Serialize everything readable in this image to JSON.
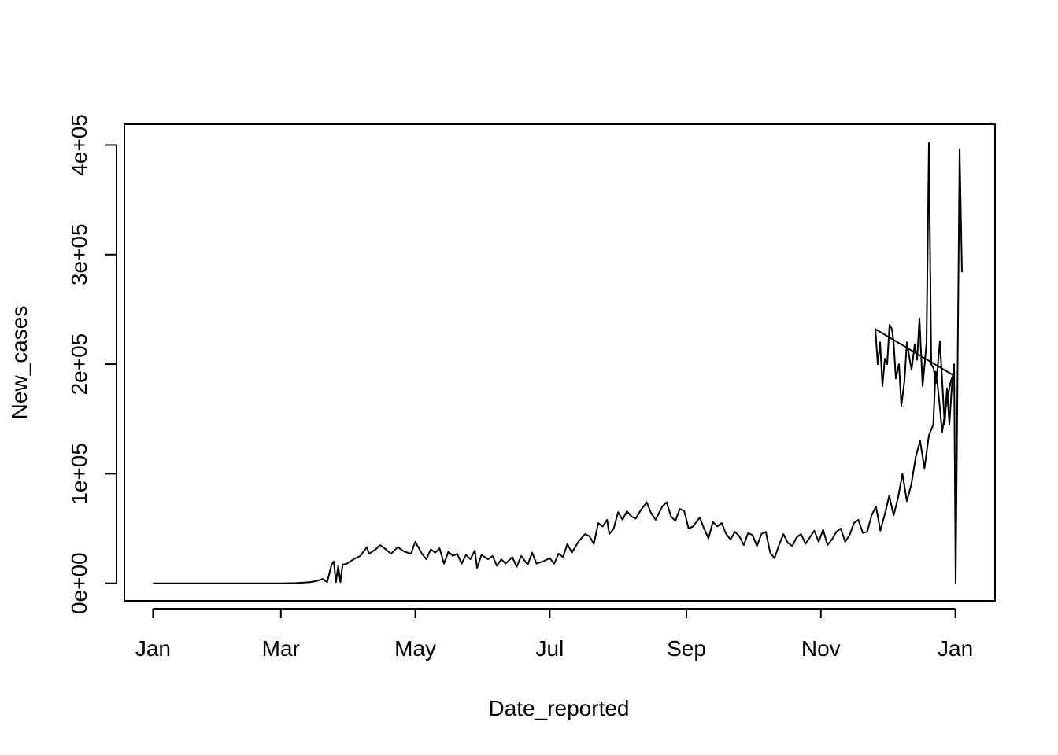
{
  "chart_data": {
    "type": "line",
    "xlabel": "Date_reported",
    "ylabel": "New_cases",
    "x_ticks": [
      {
        "date": "2020-01-03",
        "label": "Jan"
      },
      {
        "date": "2020-03-01",
        "label": "Mar"
      },
      {
        "date": "2020-05-01",
        "label": "May"
      },
      {
        "date": "2020-07-01",
        "label": "Jul"
      },
      {
        "date": "2020-09-01",
        "label": "Sep"
      },
      {
        "date": "2020-11-01",
        "label": "Nov"
      },
      {
        "date": "2021-01-01",
        "label": "Jan"
      }
    ],
    "y_ticks": [
      {
        "value": 0,
        "label": "0e+00"
      },
      {
        "value": 100000,
        "label": "1e+05"
      },
      {
        "value": 200000,
        "label": "2e+05"
      },
      {
        "value": 300000,
        "label": "3e+05"
      },
      {
        "value": 400000,
        "label": "4e+05"
      }
    ],
    "xlim": [
      "2019-12-21",
      "2021-01-19"
    ],
    "ylim": [
      -16000,
      419000
    ],
    "grid": false,
    "line_color": "#000000",
    "series": [
      {
        "points": [
          [
            "2020-01-03",
            0
          ],
          [
            "2020-02-01",
            0
          ],
          [
            "2020-03-01",
            0
          ],
          [
            "2020-03-08",
            200
          ],
          [
            "2020-03-14",
            1000
          ],
          [
            "2020-03-17",
            2000
          ],
          [
            "2020-03-20",
            4000
          ],
          [
            "2020-03-22",
            1000
          ],
          [
            "2020-03-24",
            17000
          ],
          [
            "2020-03-25",
            20000
          ],
          [
            "2020-03-26",
            1000
          ],
          [
            "2020-03-27",
            16000
          ],
          [
            "2020-03-28",
            1000
          ],
          [
            "2020-03-29",
            17000
          ],
          [
            "2020-03-31",
            18000
          ],
          [
            "2020-04-03",
            22000
          ],
          [
            "2020-04-06",
            25000
          ],
          [
            "2020-04-09",
            33000
          ],
          [
            "2020-04-10",
            27000
          ],
          [
            "2020-04-13",
            31000
          ],
          [
            "2020-04-15",
            35000
          ],
          [
            "2020-04-17",
            32000
          ],
          [
            "2020-04-20",
            27000
          ],
          [
            "2020-04-23",
            33000
          ],
          [
            "2020-04-26",
            29000
          ],
          [
            "2020-04-29",
            27000
          ],
          [
            "2020-05-01",
            38000
          ],
          [
            "2020-05-04",
            27000
          ],
          [
            "2020-05-06",
            22000
          ],
          [
            "2020-05-08",
            31000
          ],
          [
            "2020-05-10",
            28000
          ],
          [
            "2020-05-12",
            32000
          ],
          [
            "2020-05-14",
            18000
          ],
          [
            "2020-05-16",
            29000
          ],
          [
            "2020-05-18",
            25000
          ],
          [
            "2020-05-20",
            27000
          ],
          [
            "2020-05-22",
            18000
          ],
          [
            "2020-05-24",
            26000
          ],
          [
            "2020-05-26",
            22000
          ],
          [
            "2020-05-28",
            30000
          ],
          [
            "2020-05-29",
            14000
          ],
          [
            "2020-05-31",
            26000
          ],
          [
            "2020-06-03",
            22000
          ],
          [
            "2020-06-05",
            25000
          ],
          [
            "2020-06-07",
            16000
          ],
          [
            "2020-06-09",
            22000
          ],
          [
            "2020-06-11",
            18000
          ],
          [
            "2020-06-14",
            24000
          ],
          [
            "2020-06-16",
            15000
          ],
          [
            "2020-06-18",
            25000
          ],
          [
            "2020-06-21",
            17000
          ],
          [
            "2020-06-23",
            28000
          ],
          [
            "2020-06-25",
            18000
          ],
          [
            "2020-06-28",
            20000
          ],
          [
            "2020-07-01",
            23000
          ],
          [
            "2020-07-03",
            18000
          ],
          [
            "2020-07-05",
            27000
          ],
          [
            "2020-07-07",
            24000
          ],
          [
            "2020-07-09",
            36000
          ],
          [
            "2020-07-11",
            28000
          ],
          [
            "2020-07-14",
            38000
          ],
          [
            "2020-07-17",
            45000
          ],
          [
            "2020-07-19",
            43000
          ],
          [
            "2020-07-21",
            36000
          ],
          [
            "2020-07-23",
            55000
          ],
          [
            "2020-07-25",
            52000
          ],
          [
            "2020-07-27",
            58000
          ],
          [
            "2020-07-28",
            45000
          ],
          [
            "2020-07-30",
            50000
          ],
          [
            "2020-08-01",
            65000
          ],
          [
            "2020-08-03",
            58000
          ],
          [
            "2020-08-05",
            66000
          ],
          [
            "2020-08-07",
            61000
          ],
          [
            "2020-08-09",
            59000
          ],
          [
            "2020-08-11",
            66000
          ],
          [
            "2020-08-14",
            74000
          ],
          [
            "2020-08-16",
            64000
          ],
          [
            "2020-08-18",
            58000
          ],
          [
            "2020-08-21",
            70000
          ],
          [
            "2020-08-23",
            74000
          ],
          [
            "2020-08-25",
            61000
          ],
          [
            "2020-08-27",
            57000
          ],
          [
            "2020-08-29",
            68000
          ],
          [
            "2020-08-31",
            66000
          ],
          [
            "2020-09-02",
            50000
          ],
          [
            "2020-09-04",
            52000
          ],
          [
            "2020-09-07",
            60000
          ],
          [
            "2020-09-09",
            50000
          ],
          [
            "2020-09-11",
            41000
          ],
          [
            "2020-09-13",
            56000
          ],
          [
            "2020-09-15",
            52000
          ],
          [
            "2020-09-17",
            55000
          ],
          [
            "2020-09-19",
            45000
          ],
          [
            "2020-09-21",
            40000
          ],
          [
            "2020-09-23",
            47000
          ],
          [
            "2020-09-25",
            43000
          ],
          [
            "2020-09-27",
            35000
          ],
          [
            "2020-09-29",
            46000
          ],
          [
            "2020-10-01",
            44000
          ],
          [
            "2020-10-03",
            34000
          ],
          [
            "2020-10-05",
            45000
          ],
          [
            "2020-10-07",
            47000
          ],
          [
            "2020-10-09",
            28000
          ],
          [
            "2020-10-11",
            23000
          ],
          [
            "2020-10-13",
            35000
          ],
          [
            "2020-10-15",
            45000
          ],
          [
            "2020-10-17",
            37000
          ],
          [
            "2020-10-19",
            34000
          ],
          [
            "2020-10-21",
            42000
          ],
          [
            "2020-10-23",
            45000
          ],
          [
            "2020-10-25",
            36000
          ],
          [
            "2020-10-27",
            42000
          ],
          [
            "2020-10-29",
            48000
          ],
          [
            "2020-10-31",
            38000
          ],
          [
            "2020-11-02",
            49000
          ],
          [
            "2020-11-04",
            35000
          ],
          [
            "2020-11-06",
            40000
          ],
          [
            "2020-11-08",
            47000
          ],
          [
            "2020-11-10",
            50000
          ],
          [
            "2020-11-12",
            38000
          ],
          [
            "2020-11-14",
            44000
          ],
          [
            "2020-11-16",
            55000
          ],
          [
            "2020-11-18",
            58000
          ],
          [
            "2020-11-20",
            46000
          ],
          [
            "2020-11-22",
            47000
          ],
          [
            "2020-11-24",
            62000
          ],
          [
            "2020-11-26",
            70000
          ],
          [
            "2020-11-28",
            48000
          ],
          [
            "2020-11-30",
            63000
          ],
          [
            "2020-12-02",
            80000
          ],
          [
            "2020-12-04",
            62000
          ],
          [
            "2020-12-06",
            78000
          ],
          [
            "2020-12-08",
            100000
          ],
          [
            "2020-12-10",
            75000
          ],
          [
            "2020-12-12",
            90000
          ],
          [
            "2020-12-14",
            115000
          ],
          [
            "2020-12-16",
            130000
          ],
          [
            "2020-12-18",
            105000
          ],
          [
            "2020-12-20",
            135000
          ],
          [
            "2020-12-22",
            145000
          ],
          [
            "2020-12-23",
            193000
          ],
          [
            "2020-12-24",
            180000
          ],
          [
            "2020-12-25",
            160000
          ],
          [
            "2020-12-26",
            138000
          ],
          [
            "2020-12-28",
            165000
          ],
          [
            "2020-12-30",
            185000
          ],
          [
            "2020-12-31",
            190000
          ]
        ],
        "points_note": "the remaining points continue below; x axis is date-based"
      }
    ]
  }
}
